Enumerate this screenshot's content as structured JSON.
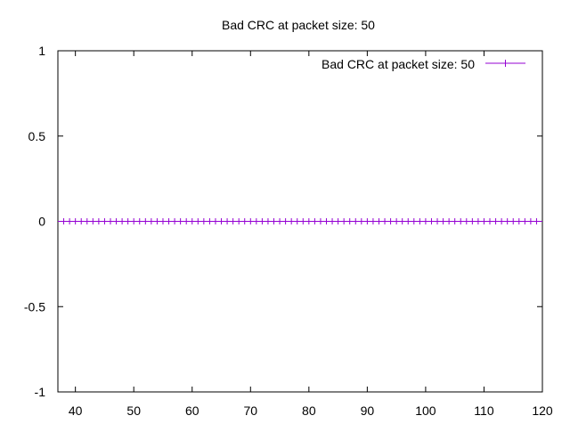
{
  "chart_data": {
    "type": "line",
    "title": "Bad CRC at packet size: 50",
    "xlabel": "",
    "ylabel": "",
    "xlim": [
      37,
      120
    ],
    "ylim": [
      -1,
      1
    ],
    "x_ticks": [
      40,
      50,
      60,
      70,
      80,
      90,
      100,
      110,
      120
    ],
    "y_ticks": [
      1,
      0.5,
      0,
      -0.5,
      -1
    ],
    "y_tick_labels": [
      "1",
      "0.5",
      "0",
      "-0.5",
      "-1"
    ],
    "grid": false,
    "legend_position": "top-right",
    "series": [
      {
        "name": "Bad CRC at packet size: 50",
        "color": "#9400d3",
        "marker": "plus",
        "x": [
          38,
          39,
          40,
          41,
          42,
          43,
          44,
          45,
          46,
          47,
          48,
          49,
          50,
          51,
          52,
          53,
          54,
          55,
          56,
          57,
          58,
          59,
          60,
          61,
          62,
          63,
          64,
          65,
          66,
          67,
          68,
          69,
          70,
          71,
          72,
          73,
          74,
          75,
          76,
          77,
          78,
          79,
          80,
          81,
          82,
          83,
          84,
          85,
          86,
          87,
          88,
          89,
          90,
          91,
          92,
          93,
          94,
          95,
          96,
          97,
          98,
          99,
          100,
          101,
          102,
          103,
          104,
          105,
          106,
          107,
          108,
          109,
          110,
          111,
          112,
          113,
          114,
          115,
          116,
          117,
          118,
          119
        ],
        "y": [
          0,
          0,
          0,
          0,
          0,
          0,
          0,
          0,
          0,
          0,
          0,
          0,
          0,
          0,
          0,
          0,
          0,
          0,
          0,
          0,
          0,
          0,
          0,
          0,
          0,
          0,
          0,
          0,
          0,
          0,
          0,
          0,
          0,
          0,
          0,
          0,
          0,
          0,
          0,
          0,
          0,
          0,
          0,
          0,
          0,
          0,
          0,
          0,
          0,
          0,
          0,
          0,
          0,
          0,
          0,
          0,
          0,
          0,
          0,
          0,
          0,
          0,
          0,
          0,
          0,
          0,
          0,
          0,
          0,
          0,
          0,
          0,
          0,
          0,
          0,
          0,
          0,
          0,
          0,
          0,
          0,
          0
        ]
      }
    ]
  }
}
